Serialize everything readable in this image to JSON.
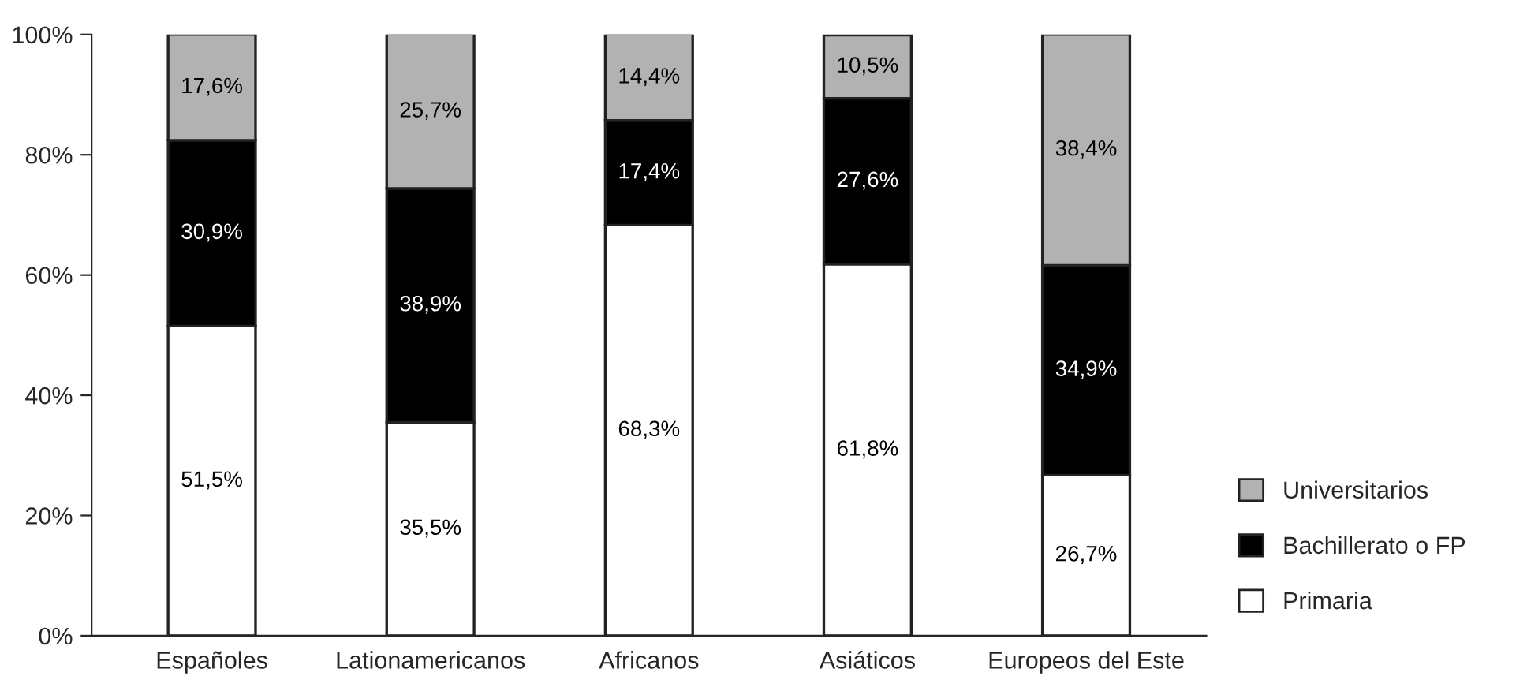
{
  "chart_data": {
    "type": "bar",
    "stacked": true,
    "categories": [
      "Españoles",
      "Lationamericanos",
      "Africanos",
      "Asiáticos",
      "Europeos del Este"
    ],
    "series": [
      {
        "name": "Primaria",
        "color": "#ffffff",
        "values": [
          51.5,
          35.5,
          68.3,
          61.8,
          26.7
        ],
        "value_labels": [
          "51,5%",
          "35,5%",
          "68,3%",
          "61,8%",
          "26,7%"
        ]
      },
      {
        "name": "Bachillerato o FP",
        "color": "#000000",
        "values": [
          30.9,
          38.9,
          17.4,
          27.6,
          34.9
        ],
        "value_labels": [
          "30,9%",
          "38,9%",
          "17,4%",
          "27,6%",
          "34,9%"
        ]
      },
      {
        "name": "Universitarios",
        "color": "#b2b2b2",
        "values": [
          17.6,
          25.7,
          14.4,
          10.5,
          38.4
        ],
        "value_labels": [
          "17,6%",
          "25,7%",
          "14,4%",
          "10,5%",
          "38,4%"
        ]
      }
    ],
    "ylim": [
      0,
      100
    ],
    "yticks": [
      {
        "value": 0,
        "label": "0%"
      },
      {
        "value": 20,
        "label": "20%"
      },
      {
        "value": 40,
        "label": "40%"
      },
      {
        "value": 60,
        "label": "60%"
      },
      {
        "value": 80,
        "label": "80%"
      },
      {
        "value": 100,
        "label": "100%"
      }
    ],
    "grid": false,
    "legend": "bottom right"
  }
}
